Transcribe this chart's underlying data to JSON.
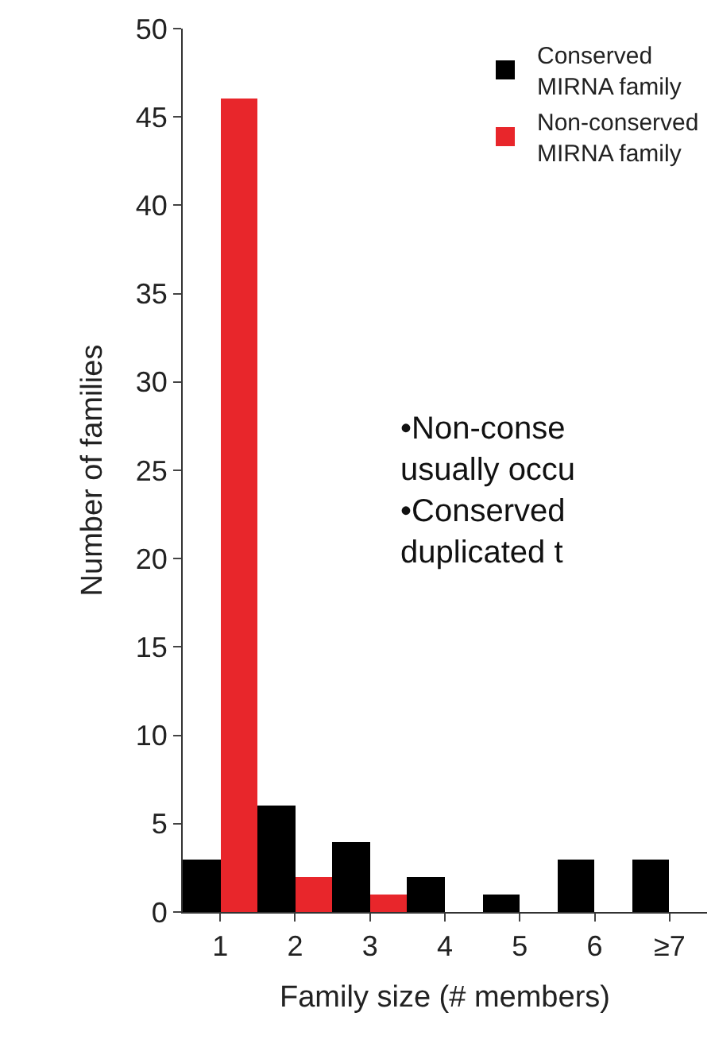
{
  "chart_data": {
    "type": "bar",
    "xlabel": "Family size (# members)",
    "ylabel": "Number of families",
    "categories": [
      "1",
      "2",
      "3",
      "4",
      "5",
      "6",
      "≥7"
    ],
    "series": [
      {
        "name": "Conserved\nMIRNA family",
        "color": "#000000",
        "values": [
          3,
          6,
          4,
          2,
          1,
          3,
          3
        ]
      },
      {
        "name": "Non-conserved\nMIRNA family",
        "color": "#e8262b",
        "values": [
          46,
          2,
          1,
          0,
          0,
          0,
          0
        ]
      }
    ],
    "ylim": [
      0,
      50
    ],
    "yticks": [
      0,
      5,
      10,
      15,
      20,
      25,
      30,
      35,
      40,
      45,
      50
    ],
    "legend": "top right",
    "annotations": [
      "•Non-conse\nusually occu\n•Conserved\nduplicated t"
    ]
  }
}
